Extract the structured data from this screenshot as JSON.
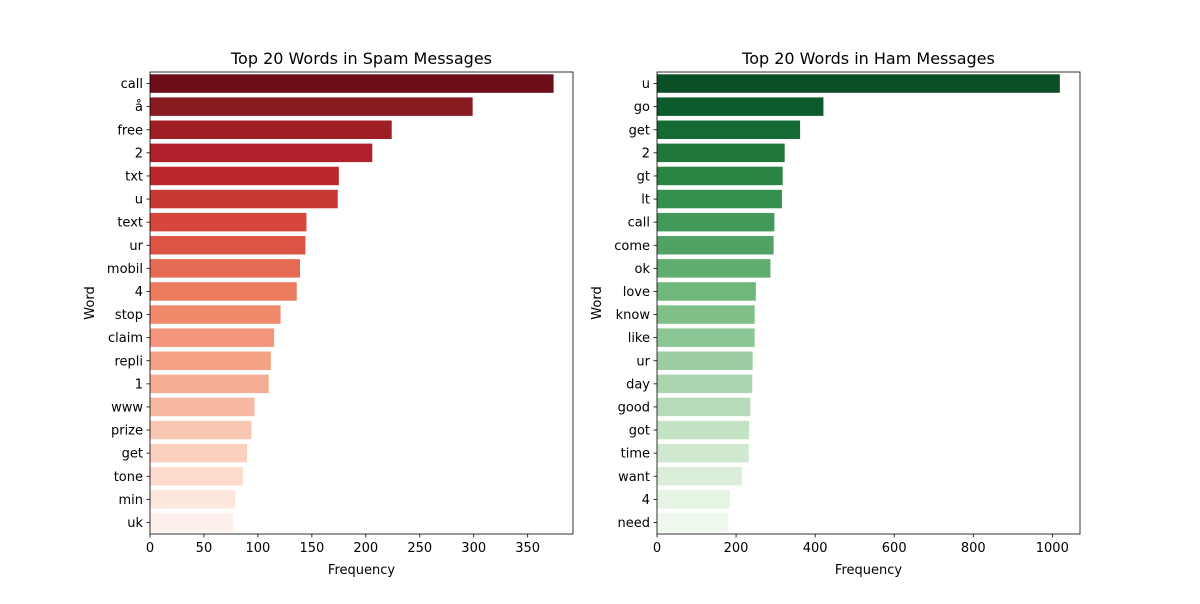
{
  "chart_data": [
    {
      "type": "bar",
      "orientation": "horizontal",
      "title": "Top 20 Words in Spam Messages",
      "xlabel": "Frequency",
      "ylabel": "Word",
      "xlim": [
        0,
        392
      ],
      "xticks": [
        0,
        50,
        100,
        150,
        200,
        250,
        300,
        350
      ],
      "palette": "Reds",
      "categories": [
        "call",
        "å",
        "free",
        "2",
        "txt",
        "u",
        "text",
        "ur",
        "mobil",
        "4",
        "stop",
        "claim",
        "repli",
        "1",
        "www",
        "prize",
        "get",
        "tone",
        "min",
        "uk"
      ],
      "values": [
        374,
        299,
        224,
        206,
        175,
        174,
        145,
        144,
        139,
        136,
        121,
        115,
        112,
        110,
        97,
        94,
        90,
        86,
        79,
        77
      ],
      "colors": [
        "#6d0e18",
        "#881b20",
        "#9e1e24",
        "#b1202a",
        "#bd262c",
        "#c83935",
        "#d6463b",
        "#de5444",
        "#e56a54",
        "#ea7b5c",
        "#f08a6a",
        "#f3957a",
        "#f5a184",
        "#f6ad94",
        "#f8b9a3",
        "#f9c6b2",
        "#fbd0be",
        "#fcdbcc",
        "#fde7dd",
        "#fdf0ea"
      ],
      "grid": false
    },
    {
      "type": "bar",
      "orientation": "horizontal",
      "title": "Top 20 Words in Ham Messages",
      "xlabel": "Frequency",
      "ylabel": "Word",
      "xlim": [
        0,
        1070
      ],
      "xticks": [
        0,
        200,
        400,
        600,
        800,
        1000
      ],
      "palette": "Greens",
      "categories": [
        "u",
        "go",
        "get",
        "2",
        "gt",
        "lt",
        "call",
        "come",
        "ok",
        "love",
        "know",
        "like",
        "ur",
        "day",
        "good",
        "got",
        "time",
        "want",
        "4",
        "need"
      ],
      "values": [
        1019,
        421,
        362,
        323,
        318,
        316,
        297,
        295,
        287,
        250,
        247,
        247,
        242,
        241,
        236,
        233,
        232,
        215,
        184,
        180
      ],
      "colors": [
        "#0b4f26",
        "#0d5b2c",
        "#156a34",
        "#1f773c",
        "#2a8443",
        "#35904d",
        "#43995a",
        "#51a365",
        "#60ad70",
        "#6fb87c",
        "#80c088",
        "#8dc695",
        "#9ccda1",
        "#aad5ae",
        "#b7dbb9",
        "#c4e3c4",
        "#d0e8cf",
        "#dbeed9",
        "#e6f4e3",
        "#eff8ec"
      ],
      "grid": false
    }
  ]
}
